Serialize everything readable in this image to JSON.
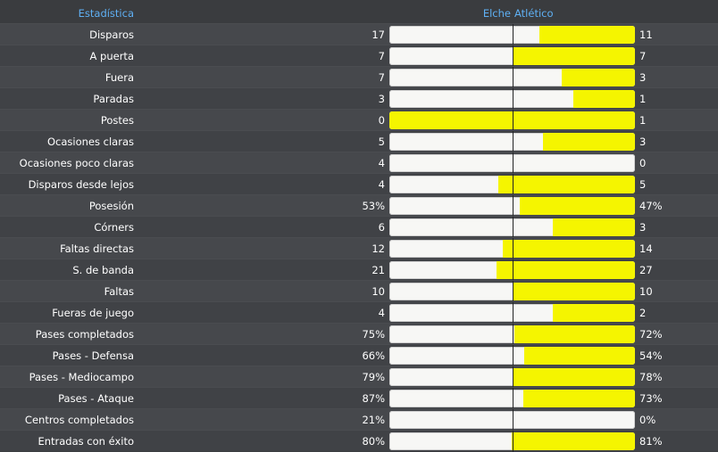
{
  "header": {
    "stat_label": "Estadística",
    "home_team": "Elche",
    "away_team": "Atlético"
  },
  "colors": {
    "home_bar": "#f7f7f5",
    "away_bar": "#f5f500",
    "header_text": "#5fb0f4",
    "background": "#3c3e41"
  },
  "rows": [
    {
      "label": "Disparos",
      "home": "17",
      "away": "11",
      "away_share": 0.39
    },
    {
      "label": "A puerta",
      "home": "7",
      "away": "7",
      "away_share": 0.5
    },
    {
      "label": "Fuera",
      "home": "7",
      "away": "3",
      "away_share": 0.3
    },
    {
      "label": "Paradas",
      "home": "3",
      "away": "1",
      "away_share": 0.25
    },
    {
      "label": "Postes",
      "home": "0",
      "away": "1",
      "away_share": 1.0
    },
    {
      "label": "Ocasiones claras",
      "home": "5",
      "away": "3",
      "away_share": 0.375
    },
    {
      "label": "Ocasiones poco claras",
      "home": "4",
      "away": "0",
      "away_share": 0.0
    },
    {
      "label": "Disparos desde lejos",
      "home": "4",
      "away": "5",
      "away_share": 0.556
    },
    {
      "label": "Posesión",
      "home": "53%",
      "away": "47%",
      "away_share": 0.47
    },
    {
      "label": "Córners",
      "home": "6",
      "away": "3",
      "away_share": 0.333
    },
    {
      "label": "Faltas directas",
      "home": "12",
      "away": "14",
      "away_share": 0.538
    },
    {
      "label": "S. de banda",
      "home": "21",
      "away": "27",
      "away_share": 0.5625
    },
    {
      "label": "Faltas",
      "home": "10",
      "away": "10",
      "away_share": 0.5
    },
    {
      "label": "Fueras de juego",
      "home": "4",
      "away": "2",
      "away_share": 0.333
    },
    {
      "label": "Pases completados",
      "home": "75%",
      "away": "72%",
      "away_share": 0.49
    },
    {
      "label": "Pases - Defensa",
      "home": "66%",
      "away": "54%",
      "away_share": 0.45
    },
    {
      "label": "Pases - Mediocampo",
      "home": "79%",
      "away": "78%",
      "away_share": 0.497
    },
    {
      "label": "Pases - Ataque",
      "home": "87%",
      "away": "73%",
      "away_share": 0.456
    },
    {
      "label": "Centros completados",
      "home": "21%",
      "away": "0%",
      "away_share": 0.0
    },
    {
      "label": "Entradas con éxito",
      "home": "80%",
      "away": "81%",
      "away_share": 0.503
    }
  ]
}
